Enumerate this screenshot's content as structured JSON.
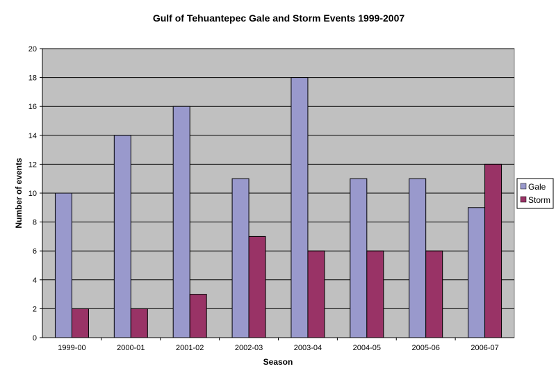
{
  "chart_data": {
    "type": "bar",
    "title": "Gulf of Tehuantepec Gale and Storm Events  1999-2007",
    "xlabel": "Season",
    "ylabel": "Number of events",
    "ylim": [
      0,
      20
    ],
    "yticks": [
      0,
      2,
      4,
      6,
      8,
      10,
      12,
      14,
      16,
      18,
      20
    ],
    "grid": true,
    "legend_position": "right",
    "categories": [
      "1999-00",
      "2000-01",
      "2001-02",
      "2002-03",
      "2003-04",
      "2004-05",
      "2005-06",
      "2006-07"
    ],
    "series": [
      {
        "name": "Gale",
        "color": "#9999cc",
        "values": [
          10,
          14,
          16,
          11,
          18,
          11,
          11,
          9
        ]
      },
      {
        "name": "Storm",
        "color": "#993366",
        "values": [
          2,
          2,
          3,
          7,
          6,
          6,
          6,
          12
        ]
      }
    ],
    "plot_background": "#c0c0c0"
  }
}
